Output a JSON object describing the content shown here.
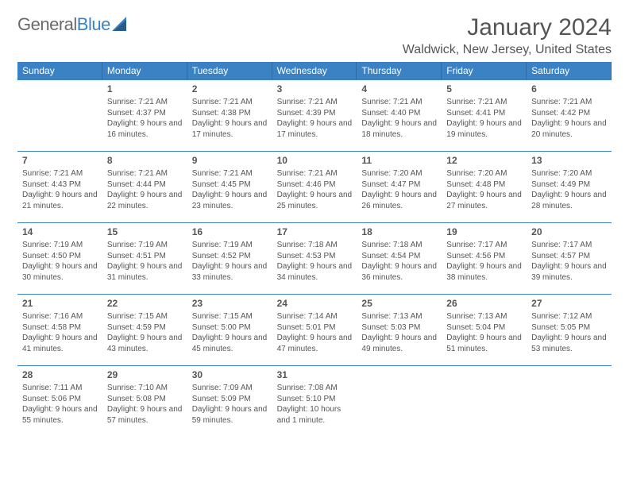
{
  "logo": {
    "text1": "General",
    "text2": "Blue"
  },
  "title": "January 2024",
  "subtitle": "Waldwick, New Jersey, United States",
  "colors": {
    "header_bg": "#3b82c4",
    "header_text": "#ffffff",
    "row_divider": "#3b82c4",
    "text": "#555555",
    "background": "#ffffff"
  },
  "day_names": [
    "Sunday",
    "Monday",
    "Tuesday",
    "Wednesday",
    "Thursday",
    "Friday",
    "Saturday"
  ],
  "blanks_before": 1,
  "days": [
    {
      "n": "1",
      "sunrise": "Sunrise: 7:21 AM",
      "sunset": "Sunset: 4:37 PM",
      "daylight": "Daylight: 9 hours and 16 minutes."
    },
    {
      "n": "2",
      "sunrise": "Sunrise: 7:21 AM",
      "sunset": "Sunset: 4:38 PM",
      "daylight": "Daylight: 9 hours and 17 minutes."
    },
    {
      "n": "3",
      "sunrise": "Sunrise: 7:21 AM",
      "sunset": "Sunset: 4:39 PM",
      "daylight": "Daylight: 9 hours and 17 minutes."
    },
    {
      "n": "4",
      "sunrise": "Sunrise: 7:21 AM",
      "sunset": "Sunset: 4:40 PM",
      "daylight": "Daylight: 9 hours and 18 minutes."
    },
    {
      "n": "5",
      "sunrise": "Sunrise: 7:21 AM",
      "sunset": "Sunset: 4:41 PM",
      "daylight": "Daylight: 9 hours and 19 minutes."
    },
    {
      "n": "6",
      "sunrise": "Sunrise: 7:21 AM",
      "sunset": "Sunset: 4:42 PM",
      "daylight": "Daylight: 9 hours and 20 minutes."
    },
    {
      "n": "7",
      "sunrise": "Sunrise: 7:21 AM",
      "sunset": "Sunset: 4:43 PM",
      "daylight": "Daylight: 9 hours and 21 minutes."
    },
    {
      "n": "8",
      "sunrise": "Sunrise: 7:21 AM",
      "sunset": "Sunset: 4:44 PM",
      "daylight": "Daylight: 9 hours and 22 minutes."
    },
    {
      "n": "9",
      "sunrise": "Sunrise: 7:21 AM",
      "sunset": "Sunset: 4:45 PM",
      "daylight": "Daylight: 9 hours and 23 minutes."
    },
    {
      "n": "10",
      "sunrise": "Sunrise: 7:21 AM",
      "sunset": "Sunset: 4:46 PM",
      "daylight": "Daylight: 9 hours and 25 minutes."
    },
    {
      "n": "11",
      "sunrise": "Sunrise: 7:20 AM",
      "sunset": "Sunset: 4:47 PM",
      "daylight": "Daylight: 9 hours and 26 minutes."
    },
    {
      "n": "12",
      "sunrise": "Sunrise: 7:20 AM",
      "sunset": "Sunset: 4:48 PM",
      "daylight": "Daylight: 9 hours and 27 minutes."
    },
    {
      "n": "13",
      "sunrise": "Sunrise: 7:20 AM",
      "sunset": "Sunset: 4:49 PM",
      "daylight": "Daylight: 9 hours and 28 minutes."
    },
    {
      "n": "14",
      "sunrise": "Sunrise: 7:19 AM",
      "sunset": "Sunset: 4:50 PM",
      "daylight": "Daylight: 9 hours and 30 minutes."
    },
    {
      "n": "15",
      "sunrise": "Sunrise: 7:19 AM",
      "sunset": "Sunset: 4:51 PM",
      "daylight": "Daylight: 9 hours and 31 minutes."
    },
    {
      "n": "16",
      "sunrise": "Sunrise: 7:19 AM",
      "sunset": "Sunset: 4:52 PM",
      "daylight": "Daylight: 9 hours and 33 minutes."
    },
    {
      "n": "17",
      "sunrise": "Sunrise: 7:18 AM",
      "sunset": "Sunset: 4:53 PM",
      "daylight": "Daylight: 9 hours and 34 minutes."
    },
    {
      "n": "18",
      "sunrise": "Sunrise: 7:18 AM",
      "sunset": "Sunset: 4:54 PM",
      "daylight": "Daylight: 9 hours and 36 minutes."
    },
    {
      "n": "19",
      "sunrise": "Sunrise: 7:17 AM",
      "sunset": "Sunset: 4:56 PM",
      "daylight": "Daylight: 9 hours and 38 minutes."
    },
    {
      "n": "20",
      "sunrise": "Sunrise: 7:17 AM",
      "sunset": "Sunset: 4:57 PM",
      "daylight": "Daylight: 9 hours and 39 minutes."
    },
    {
      "n": "21",
      "sunrise": "Sunrise: 7:16 AM",
      "sunset": "Sunset: 4:58 PM",
      "daylight": "Daylight: 9 hours and 41 minutes."
    },
    {
      "n": "22",
      "sunrise": "Sunrise: 7:15 AM",
      "sunset": "Sunset: 4:59 PM",
      "daylight": "Daylight: 9 hours and 43 minutes."
    },
    {
      "n": "23",
      "sunrise": "Sunrise: 7:15 AM",
      "sunset": "Sunset: 5:00 PM",
      "daylight": "Daylight: 9 hours and 45 minutes."
    },
    {
      "n": "24",
      "sunrise": "Sunrise: 7:14 AM",
      "sunset": "Sunset: 5:01 PM",
      "daylight": "Daylight: 9 hours and 47 minutes."
    },
    {
      "n": "25",
      "sunrise": "Sunrise: 7:13 AM",
      "sunset": "Sunset: 5:03 PM",
      "daylight": "Daylight: 9 hours and 49 minutes."
    },
    {
      "n": "26",
      "sunrise": "Sunrise: 7:13 AM",
      "sunset": "Sunset: 5:04 PM",
      "daylight": "Daylight: 9 hours and 51 minutes."
    },
    {
      "n": "27",
      "sunrise": "Sunrise: 7:12 AM",
      "sunset": "Sunset: 5:05 PM",
      "daylight": "Daylight: 9 hours and 53 minutes."
    },
    {
      "n": "28",
      "sunrise": "Sunrise: 7:11 AM",
      "sunset": "Sunset: 5:06 PM",
      "daylight": "Daylight: 9 hours and 55 minutes."
    },
    {
      "n": "29",
      "sunrise": "Sunrise: 7:10 AM",
      "sunset": "Sunset: 5:08 PM",
      "daylight": "Daylight: 9 hours and 57 minutes."
    },
    {
      "n": "30",
      "sunrise": "Sunrise: 7:09 AM",
      "sunset": "Sunset: 5:09 PM",
      "daylight": "Daylight: 9 hours and 59 minutes."
    },
    {
      "n": "31",
      "sunrise": "Sunrise: 7:08 AM",
      "sunset": "Sunset: 5:10 PM",
      "daylight": "Daylight: 10 hours and 1 minute."
    }
  ]
}
